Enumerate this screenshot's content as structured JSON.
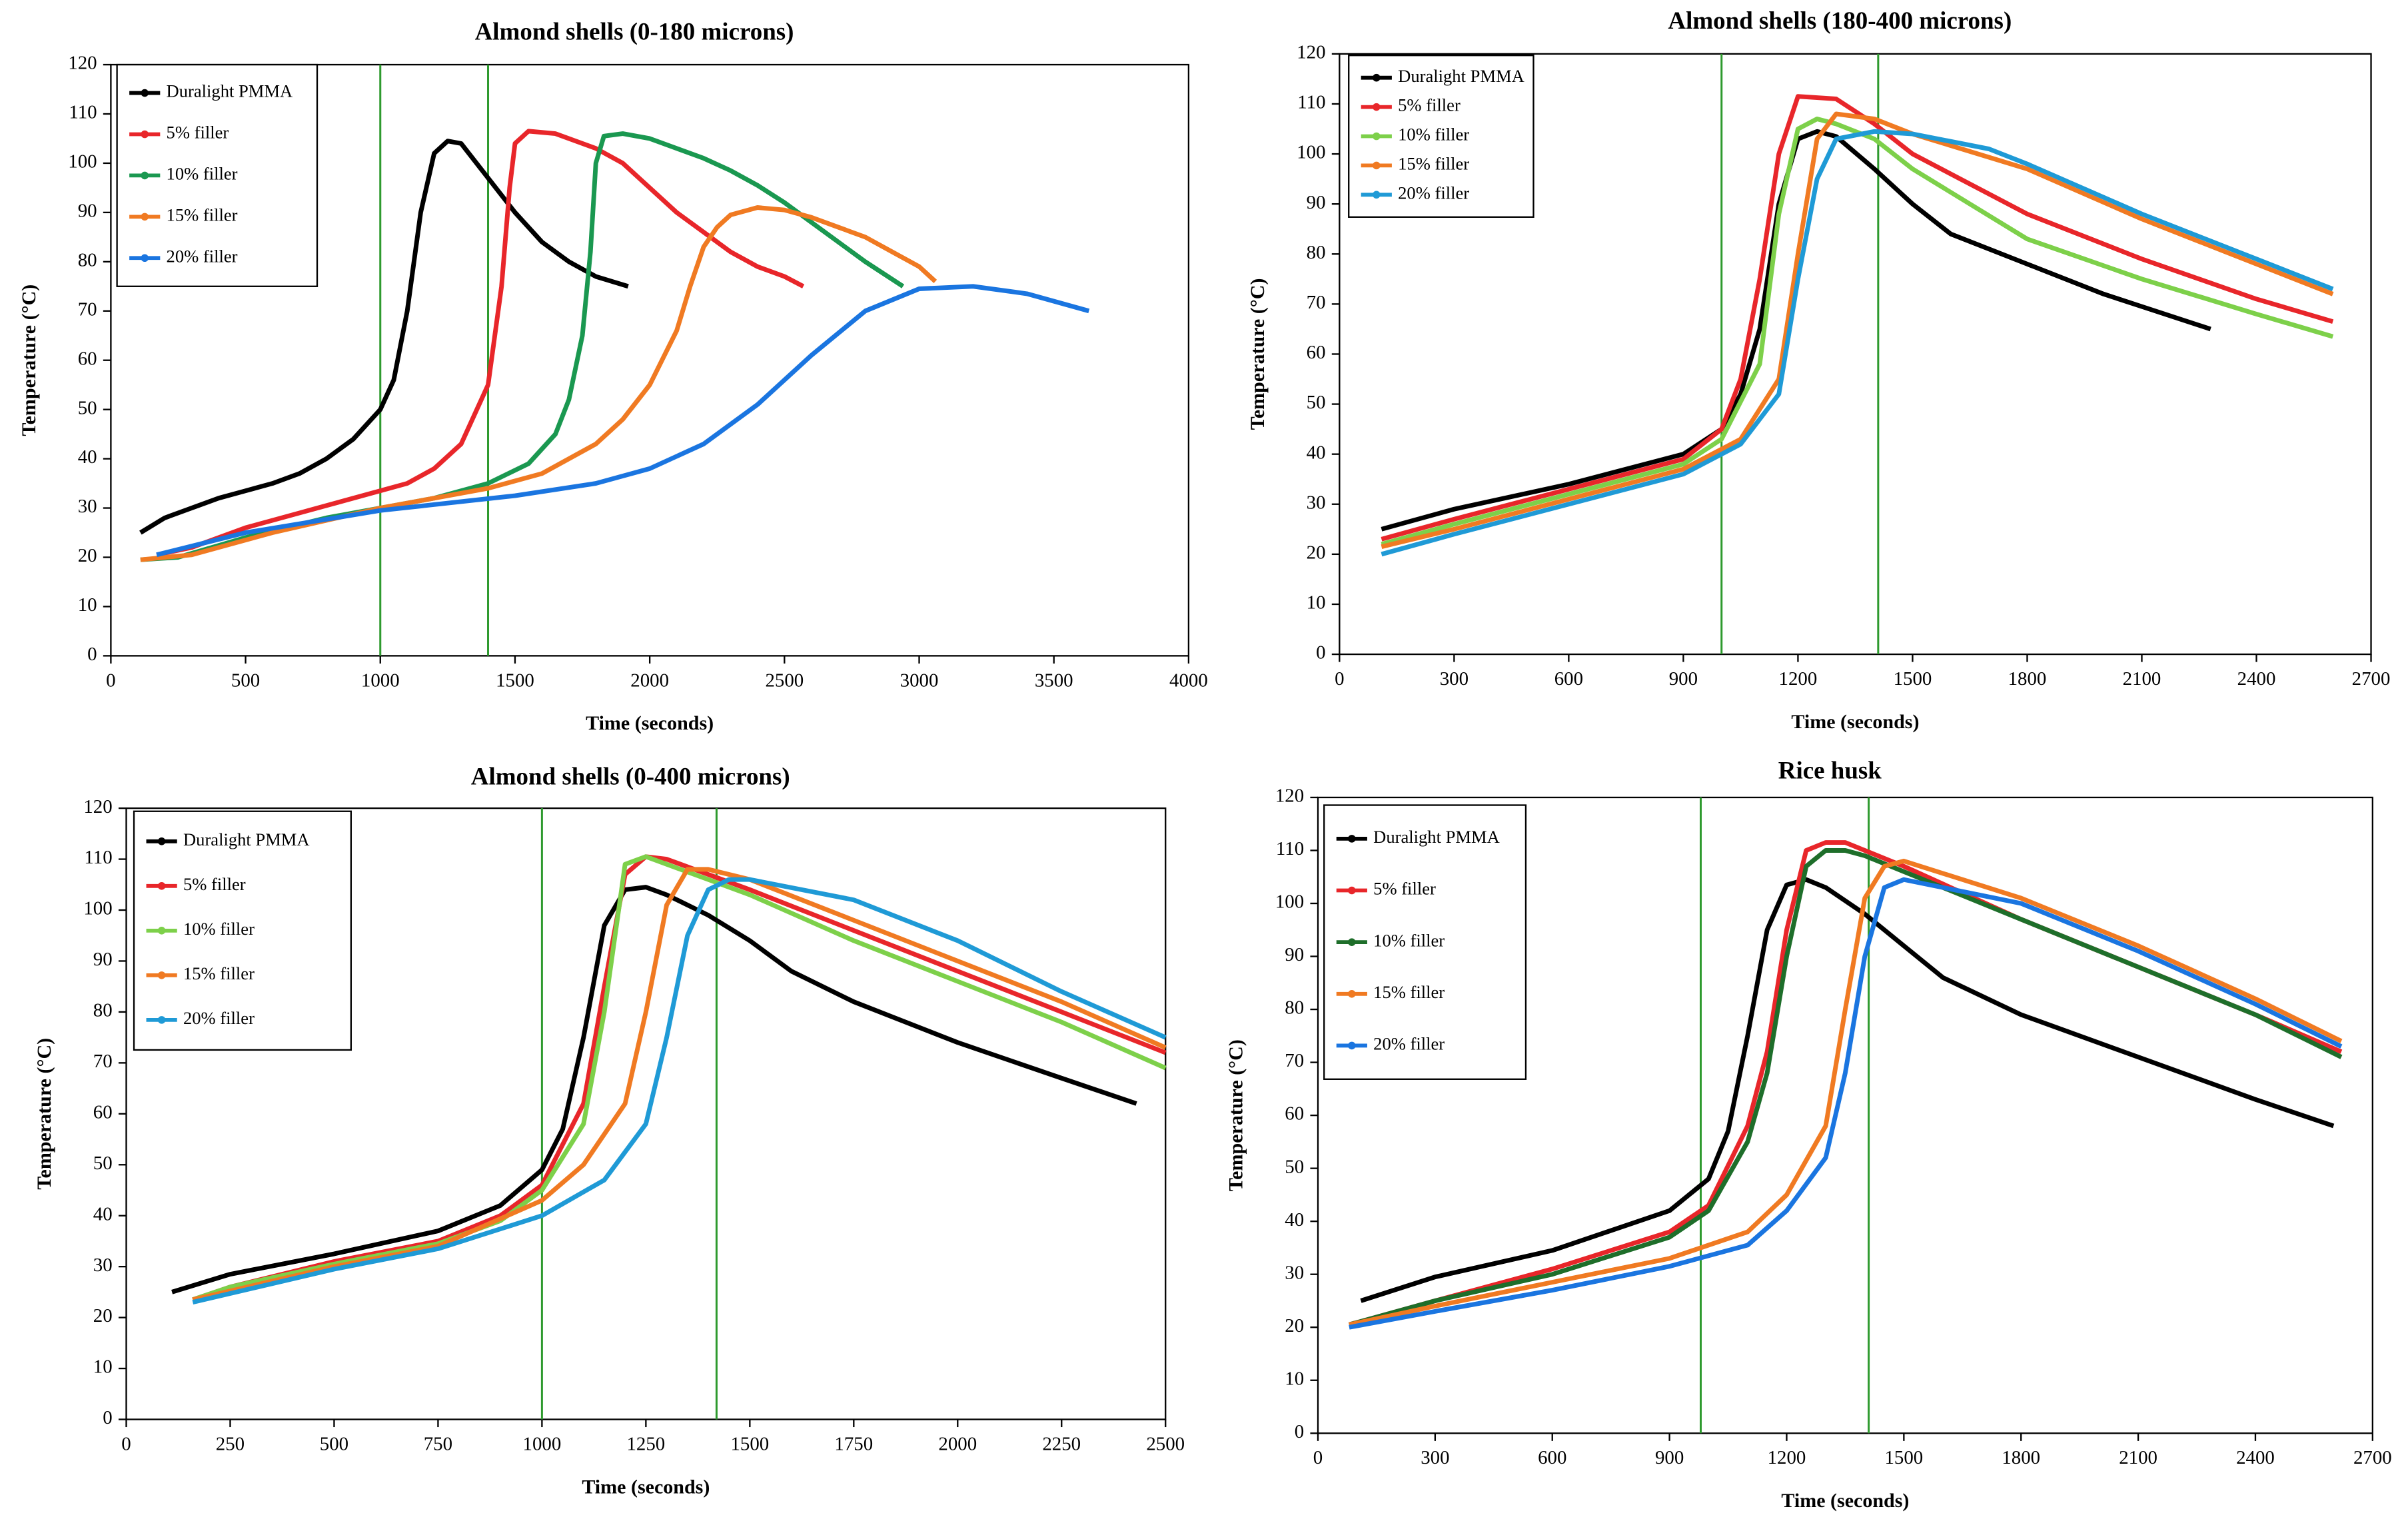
{
  "chart_data": [
    {
      "type": "line",
      "title": "Almond shells  (0-180 microns)",
      "x_label": "Time (seconds)",
      "y_label": "Temperature (°C)",
      "xlim": [
        0,
        4000
      ],
      "xticks": [
        0,
        500,
        1000,
        1500,
        2000,
        2500,
        3000,
        3500,
        4000
      ],
      "ylim": [
        0,
        120
      ],
      "yticks": [
        0,
        10,
        20,
        30,
        40,
        50,
        60,
        70,
        80,
        90,
        100,
        110,
        120
      ],
      "grid": false,
      "legend": "upper left",
      "reference_lines": {
        "x": [
          1000,
          1400
        ],
        "color": "#2e9a2e"
      },
      "series": [
        {
          "name": "Duralight PMMA",
          "color": "#000000",
          "x": [
            110,
            200,
            300,
            400,
            500,
            600,
            700,
            800,
            900,
            1000,
            1050,
            1100,
            1150,
            1200,
            1250,
            1300,
            1400,
            1500,
            1600,
            1700,
            1800,
            1920
          ],
          "values": [
            25,
            28,
            30,
            32,
            33.5,
            35,
            37,
            40,
            44,
            50,
            56,
            70,
            90,
            102,
            104.5,
            104,
            97,
            90,
            84,
            80,
            77,
            75
          ]
        },
        {
          "name": "5% filler",
          "color": "#e8262a",
          "x": [
            170,
            300,
            500,
            700,
            900,
            1100,
            1200,
            1300,
            1400,
            1450,
            1480,
            1500,
            1550,
            1650,
            1800,
            1900,
            2000,
            2100,
            2200,
            2300,
            2400,
            2500,
            2570
          ],
          "values": [
            20.5,
            22,
            26,
            29,
            32,
            35,
            38,
            43,
            55,
            75,
            95,
            104,
            106.5,
            106,
            103,
            100,
            95,
            90,
            86,
            82,
            79,
            77,
            75
          ]
        },
        {
          "name": "10% filler",
          "color": "#1a9850",
          "x": [
            110,
            250,
            500,
            800,
            1000,
            1200,
            1400,
            1550,
            1650,
            1700,
            1750,
            1780,
            1800,
            1830,
            1900,
            2000,
            2100,
            2200,
            2300,
            2400,
            2500,
            2600,
            2700,
            2800,
            2940
          ],
          "values": [
            19.5,
            20,
            24,
            28,
            30,
            32,
            35,
            39,
            45,
            52,
            65,
            82,
            100,
            105.5,
            106,
            105,
            103,
            101,
            98.5,
            95.5,
            92,
            88,
            84,
            80,
            75
          ]
        },
        {
          "name": "15% filler",
          "color": "#f07a22",
          "x": [
            110,
            300,
            600,
            1000,
            1400,
            1600,
            1800,
            1900,
            2000,
            2100,
            2150,
            2200,
            2250,
            2300,
            2400,
            2500,
            2600,
            2700,
            2800,
            2900,
            3000,
            3060
          ],
          "values": [
            19.5,
            20.5,
            25,
            30,
            34,
            37,
            43,
            48,
            55,
            66,
            75,
            83,
            87,
            89.5,
            91,
            90.5,
            89,
            87,
            85,
            82,
            79,
            76
          ]
        },
        {
          "name": "20% filler",
          "color": "#1a75e0",
          "x": [
            170,
            500,
            1000,
            1500,
            1800,
            2000,
            2200,
            2400,
            2600,
            2800,
            3000,
            3200,
            3400,
            3630
          ],
          "values": [
            20.5,
            25,
            29.5,
            32.5,
            35,
            38,
            43,
            51,
            61,
            70,
            74.5,
            75,
            73.5,
            70
          ]
        }
      ]
    },
    {
      "type": "line",
      "title": "Almond shells  (180-400 microns)",
      "x_label": "Time  (seconds)",
      "y_label": "Temperature  (°C)",
      "xlim": [
        0,
        2700
      ],
      "xticks": [
        0,
        300,
        600,
        900,
        1200,
        1500,
        1800,
        2100,
        2400,
        2700
      ],
      "ylim": [
        0,
        120
      ],
      "yticks": [
        0,
        10,
        20,
        30,
        40,
        50,
        60,
        70,
        80,
        90,
        100,
        110,
        120
      ],
      "grid": false,
      "legend": "upper left",
      "reference_lines": {
        "x": [
          1000,
          1410
        ],
        "color": "#2e9a2e"
      },
      "series": [
        {
          "name": "Duralight PMMA",
          "color": "#000000",
          "x": [
            110,
            300,
            600,
            900,
            1000,
            1050,
            1100,
            1150,
            1200,
            1250,
            1300,
            1400,
            1500,
            1600,
            1800,
            2000,
            2100,
            2280
          ],
          "values": [
            25,
            29,
            34,
            40,
            45,
            52,
            65,
            90,
            103,
            104.5,
            103.5,
            97,
            90,
            84,
            78,
            72,
            69.5,
            65
          ]
        },
        {
          "name": "5% filler",
          "color": "#e8262a",
          "x": [
            110,
            300,
            600,
            900,
            1000,
            1050,
            1100,
            1150,
            1200,
            1300,
            1400,
            1500,
            1800,
            2100,
            2400,
            2600
          ],
          "values": [
            23,
            27,
            33,
            39,
            45,
            55,
            75,
            100,
            111.5,
            111,
            106,
            100,
            88,
            79,
            71,
            66.5
          ]
        },
        {
          "name": "10% filler",
          "color": "#7dd04a",
          "x": [
            110,
            300,
            600,
            900,
            1000,
            1100,
            1150,
            1200,
            1250,
            1300,
            1400,
            1500,
            1800,
            2100,
            2400,
            2600
          ],
          "values": [
            22,
            26,
            32,
            38,
            43,
            58,
            88,
            105,
            107,
            106,
            103,
            97,
            83,
            75,
            68,
            63.5
          ]
        },
        {
          "name": "15% filler",
          "color": "#f07a22",
          "x": [
            110,
            300,
            600,
            900,
            1050,
            1150,
            1200,
            1250,
            1300,
            1400,
            1500,
            1800,
            2100,
            2400,
            2600
          ],
          "values": [
            21.5,
            25,
            31,
            37,
            43,
            55,
            80,
            103,
            108,
            107,
            104,
            97,
            87,
            78,
            72
          ]
        },
        {
          "name": "20% filler",
          "color": "#1f9ad6",
          "x": [
            110,
            300,
            600,
            900,
            1050,
            1150,
            1200,
            1250,
            1300,
            1400,
            1500,
            1700,
            1800,
            2100,
            2400,
            2600
          ],
          "values": [
            20,
            24,
            30,
            36,
            42,
            52,
            75,
            95,
            103,
            104.5,
            104,
            101,
            98,
            88,
            79,
            73
          ]
        }
      ]
    },
    {
      "type": "line",
      "title": "Almond shells  (0-400 microns)",
      "x_label": "Time (seconds)",
      "y_label": "Temperature (°C)",
      "xlim": [
        0,
        2500
      ],
      "xticks": [
        0,
        250,
        500,
        750,
        1000,
        1250,
        1500,
        1750,
        2000,
        2250,
        2500
      ],
      "ylim": [
        0,
        120
      ],
      "yticks": [
        0,
        10,
        20,
        30,
        40,
        50,
        60,
        70,
        80,
        90,
        100,
        110,
        120
      ],
      "grid": false,
      "legend": "upper left",
      "reference_lines": {
        "x": [
          1000,
          1420
        ],
        "color": "#2e9a2e"
      },
      "series": [
        {
          "name": "Duralight PMMA",
          "color": "#000000",
          "x": [
            110,
            250,
            500,
            750,
            900,
            1000,
            1050,
            1100,
            1150,
            1200,
            1250,
            1300,
            1400,
            1500,
            1600,
            1750,
            2000,
            2250,
            2430
          ],
          "values": [
            25,
            28.5,
            32.5,
            37,
            42,
            49,
            57,
            75,
            97,
            104,
            104.5,
            103,
            99,
            94,
            88,
            82,
            74,
            67,
            62
          ]
        },
        {
          "name": "5% filler",
          "color": "#e8262a",
          "x": [
            160,
            250,
            500,
            750,
            900,
            1000,
            1100,
            1150,
            1200,
            1250,
            1300,
            1400,
            1500,
            1750,
            2000,
            2250,
            2500
          ],
          "values": [
            23.5,
            26,
            31,
            35,
            40,
            46,
            62,
            85,
            107,
            110.5,
            110,
            107,
            104,
            96,
            88,
            80,
            72
          ]
        },
        {
          "name": "10% filler",
          "color": "#7dd04a",
          "x": [
            160,
            250,
            500,
            750,
            900,
            1000,
            1100,
            1150,
            1200,
            1250,
            1300,
            1400,
            1500,
            1750,
            2000,
            2250,
            2500
          ],
          "values": [
            23.5,
            26,
            30.5,
            34.5,
            39,
            45,
            58,
            80,
            109,
            110.5,
            109,
            106,
            103,
            94,
            86,
            78,
            69
          ]
        },
        {
          "name": "15% filler",
          "color": "#f07a22",
          "x": [
            160,
            500,
            750,
            1000,
            1100,
            1200,
            1250,
            1300,
            1350,
            1400,
            1500,
            1750,
            2000,
            2250,
            2500
          ],
          "values": [
            23.5,
            30,
            34,
            43,
            50,
            62,
            80,
            101,
            108,
            108,
            106,
            98,
            90,
            82,
            73
          ]
        },
        {
          "name": "20% filler",
          "color": "#1f9ad6",
          "x": [
            160,
            500,
            750,
            1000,
            1150,
            1250,
            1300,
            1350,
            1400,
            1450,
            1500,
            1750,
            2000,
            2250,
            2500
          ],
          "values": [
            23,
            29.5,
            33.5,
            40,
            47,
            58,
            75,
            95,
            104,
            106,
            106,
            102,
            94,
            84,
            75
          ]
        }
      ]
    },
    {
      "type": "line",
      "title": "Rice husk",
      "x_label": "Time (seconds)",
      "y_label": "Temperature (°C)",
      "xlim": [
        0,
        2700
      ],
      "xticks": [
        0,
        300,
        600,
        900,
        1200,
        1500,
        1800,
        2100,
        2400,
        2700
      ],
      "ylim": [
        0,
        120
      ],
      "yticks": [
        0,
        10,
        20,
        30,
        40,
        50,
        60,
        70,
        80,
        90,
        100,
        110,
        120
      ],
      "grid": false,
      "legend": "upper left",
      "reference_lines": {
        "x": [
          980,
          1410
        ],
        "color": "#2e9a2e"
      },
      "series": [
        {
          "name": "Duralight PMMA",
          "color": "#000000",
          "x": [
            110,
            300,
            600,
            900,
            1000,
            1050,
            1100,
            1150,
            1200,
            1250,
            1300,
            1400,
            1500,
            1600,
            1800,
            2100,
            2400,
            2600
          ],
          "values": [
            25,
            29.5,
            34.5,
            42,
            48,
            57,
            75,
            95,
            103.5,
            104.5,
            103,
            98,
            92,
            86,
            79,
            71,
            63,
            58
          ]
        },
        {
          "name": "5% filler",
          "color": "#e8262a",
          "x": [
            80,
            300,
            600,
            900,
            1000,
            1100,
            1150,
            1200,
            1250,
            1300,
            1350,
            1400,
            1500,
            1800,
            2100,
            2400,
            2620
          ],
          "values": [
            20.5,
            25,
            31,
            38,
            43,
            58,
            72,
            95,
            110,
            111.5,
            111.5,
            110,
            107,
            97,
            88,
            79,
            72
          ]
        },
        {
          "name": "10% filler",
          "color": "#1e6e2a",
          "x": [
            80,
            300,
            600,
            900,
            1000,
            1100,
            1150,
            1200,
            1250,
            1300,
            1350,
            1400,
            1500,
            1800,
            2100,
            2400,
            2620
          ],
          "values": [
            20.5,
            25,
            30,
            37,
            42,
            55,
            68,
            90,
            107,
            110,
            110,
            109,
            106,
            97,
            88,
            79,
            71
          ]
        },
        {
          "name": "15% filler",
          "color": "#f07a22",
          "x": [
            80,
            300,
            600,
            900,
            1100,
            1200,
            1300,
            1350,
            1400,
            1450,
            1500,
            1800,
            2100,
            2400,
            2620
          ],
          "values": [
            20.5,
            24,
            28.5,
            33,
            38,
            45,
            58,
            80,
            101,
            107,
            108,
            101,
            92,
            82,
            74
          ]
        },
        {
          "name": "20% filler",
          "color": "#1a75e0",
          "x": [
            80,
            300,
            600,
            900,
            1100,
            1200,
            1300,
            1350,
            1400,
            1450,
            1500,
            1800,
            2100,
            2400,
            2620
          ],
          "values": [
            20,
            23,
            27,
            31.5,
            35.5,
            42,
            52,
            68,
            90,
            103,
            104.5,
            100,
            91,
            81,
            73
          ]
        }
      ]
    }
  ]
}
